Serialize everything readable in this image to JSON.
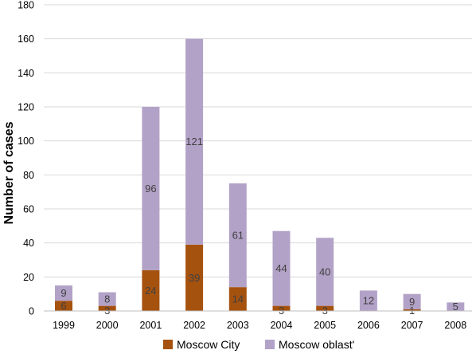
{
  "chart_data": {
    "type": "bar",
    "stacked": true,
    "title": "",
    "xlabel": "",
    "ylabel": "Number of cases",
    "ylim": [
      0,
      180
    ],
    "yticks": [
      "0",
      "20",
      "40",
      "60",
      "80",
      "100",
      "120",
      "140",
      "160",
      "180"
    ],
    "categories": [
      "1999",
      "2000",
      "2001",
      "2002",
      "2003",
      "2004",
      "2005",
      "2006",
      "2007",
      "2008"
    ],
    "series": [
      {
        "name": "Moscow City",
        "color": "#a5520f",
        "values": [
          6,
          3,
          24,
          39,
          14,
          3,
          3,
          0,
          1,
          0
        ],
        "labels": [
          "6",
          "3",
          "24",
          "39",
          "14",
          "3",
          "3",
          "",
          "1",
          ""
        ]
      },
      {
        "name": "Moscow oblast'",
        "color": "#b3a2c7",
        "values": [
          9,
          8,
          96,
          121,
          61,
          44,
          40,
          12,
          9,
          5
        ],
        "labels": [
          "9",
          "8",
          "96",
          "121",
          "61",
          "44",
          "40",
          "12",
          "9",
          "5"
        ]
      }
    ],
    "grid": true,
    "legend_position": "bottom"
  }
}
